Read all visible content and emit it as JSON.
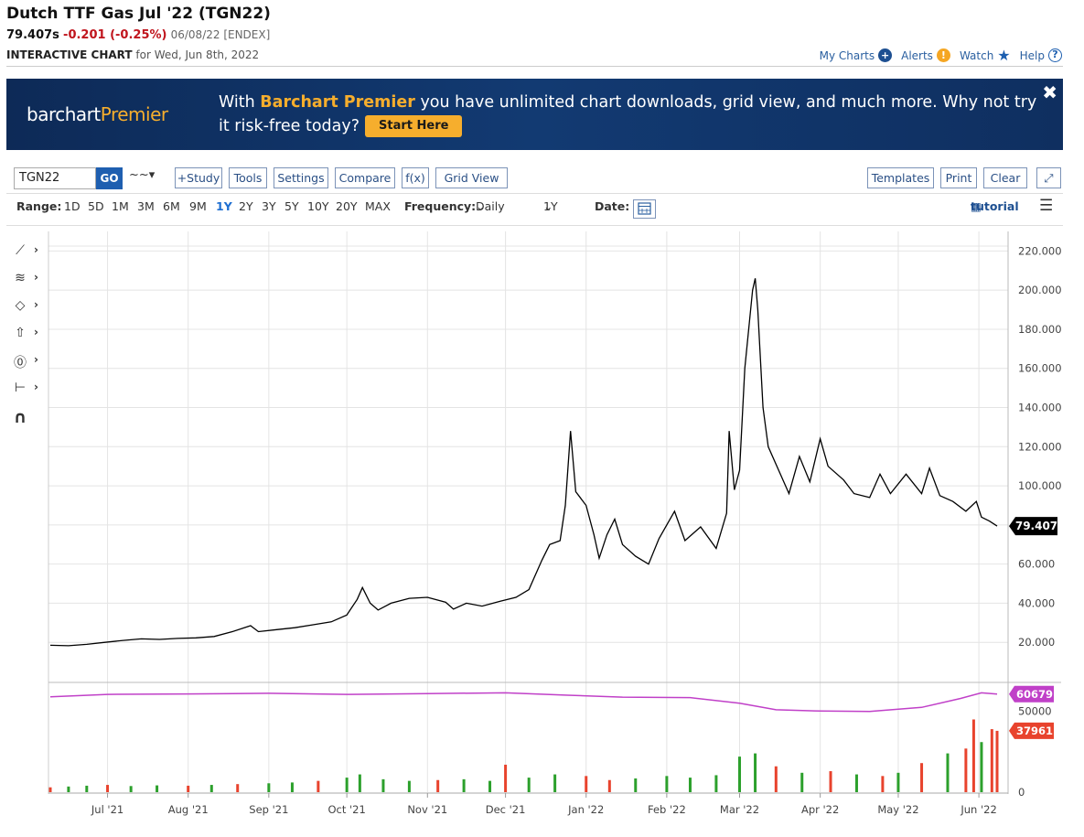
{
  "header": {
    "title": "Dutch TTF Gas Jul '22 (TGN22)",
    "last": "79.407s",
    "change": "-0.201 (-0.25%)",
    "date_exchange": "06/08/22 [ENDEX]",
    "chart_label": "INTERACTIVE CHART",
    "chart_for": "for Wed, Jun 8th, 2022"
  },
  "top_links": {
    "my_charts": "My Charts",
    "alerts": "Alerts",
    "watch": "Watch",
    "help": "Help"
  },
  "banner": {
    "logo_a": "barchart",
    "logo_b": "Premier",
    "msg_a": "With ",
    "msg_hl": "Barchart Premier",
    "msg_b": " you have unlimited chart downloads, grid view, and much more. Why not try it risk-free today?",
    "start": "Start Here",
    "close": "✖"
  },
  "toolbar": {
    "symbol": "TGN22",
    "go": "GO",
    "chart_type": "~~▾",
    "study": "+Study",
    "tools": "Tools",
    "settings": "Settings",
    "compare": "Compare",
    "fx": "f(x)",
    "grid_view": "Grid View",
    "templates": "Templates",
    "print": "Print",
    "clear": "Clear",
    "expand": "⤢"
  },
  "rangebar": {
    "range_label": "Range:",
    "ranges": [
      "1D",
      "5D",
      "1M",
      "3M",
      "6M",
      "9M",
      "1Y",
      "2Y",
      "3Y",
      "5Y",
      "10Y",
      "20Y",
      "MAX"
    ],
    "selected": "1Y",
    "frequency_label": "Frequency:",
    "frequency": "Daily",
    "period": "1Y",
    "date_label": "Date:",
    "tutorial": "tutorial"
  },
  "left_tools": [
    {
      "icon": "trendline-icon",
      "glyph": "⟋"
    },
    {
      "icon": "fibonacci-icon",
      "glyph": "≋"
    },
    {
      "icon": "shape-icon",
      "glyph": "◇"
    },
    {
      "icon": "arrow-up-icon",
      "glyph": "⇧"
    },
    {
      "icon": "text-icon",
      "glyph": "⓪"
    },
    {
      "icon": "measure-icon",
      "glyph": "⊢"
    },
    {
      "icon": "magnet-icon",
      "glyph": "∩"
    }
  ],
  "chart_data": {
    "type": "line",
    "title": "",
    "xlabel": "",
    "ylabel": "",
    "ylim": [
      0,
      230
    ],
    "y_ticks": [
      20,
      40,
      60,
      80,
      100,
      120,
      140,
      160,
      180,
      200,
      220
    ],
    "y_tick_labels": [
      "20.000",
      "40.000",
      "60.000",
      "80.000",
      "100.000",
      "120.000",
      "140.000",
      "160.000",
      "180.000",
      "200.000",
      "220.000"
    ],
    "x_start": "2021-06-09",
    "x_end": "2022-06-08",
    "x_ticks": [
      {
        "date": "2021-07-01",
        "label": "Jul '21"
      },
      {
        "date": "2021-08-01",
        "label": "Aug '21"
      },
      {
        "date": "2021-09-01",
        "label": "Sep '21"
      },
      {
        "date": "2021-10-01",
        "label": "Oct '21"
      },
      {
        "date": "2021-11-01",
        "label": "Nov '21"
      },
      {
        "date": "2021-12-01",
        "label": "Dec '21"
      },
      {
        "date": "2022-01-01",
        "label": "Jan '22"
      },
      {
        "date": "2022-02-01",
        "label": "Feb '22"
      },
      {
        "date": "2022-03-01",
        "label": "Mar '22"
      },
      {
        "date": "2022-04-01",
        "label": "Apr '22"
      },
      {
        "date": "2022-05-01",
        "label": "May '22"
      },
      {
        "date": "2022-06-01",
        "label": "Jun '22"
      }
    ],
    "price_series": {
      "color": "#000000",
      "points": [
        [
          "2021-06-09",
          18.5
        ],
        [
          "2021-06-16",
          18.3
        ],
        [
          "2021-06-23",
          19.0
        ],
        [
          "2021-06-30",
          20.0
        ],
        [
          "2021-07-07",
          21.0
        ],
        [
          "2021-07-14",
          21.8
        ],
        [
          "2021-07-21",
          21.5
        ],
        [
          "2021-07-28",
          22.0
        ],
        [
          "2021-08-04",
          22.3
        ],
        [
          "2021-08-11",
          23.0
        ],
        [
          "2021-08-18",
          25.5
        ],
        [
          "2021-08-25",
          28.5
        ],
        [
          "2021-08-28",
          25.5
        ],
        [
          "2021-09-04",
          26.5
        ],
        [
          "2021-09-11",
          27.5
        ],
        [
          "2021-09-18",
          29.0
        ],
        [
          "2021-09-25",
          30.5
        ],
        [
          "2021-10-01",
          34.0
        ],
        [
          "2021-10-05",
          42.0
        ],
        [
          "2021-10-07",
          48.0
        ],
        [
          "2021-10-10",
          40.0
        ],
        [
          "2021-10-13",
          36.5
        ],
        [
          "2021-10-18",
          40.0
        ],
        [
          "2021-10-25",
          42.5
        ],
        [
          "2021-11-01",
          43.0
        ],
        [
          "2021-11-08",
          40.5
        ],
        [
          "2021-11-11",
          37.0
        ],
        [
          "2021-11-16",
          40.0
        ],
        [
          "2021-11-22",
          38.5
        ],
        [
          "2021-11-29",
          41.0
        ],
        [
          "2021-12-05",
          43.0
        ],
        [
          "2021-12-10",
          47.0
        ],
        [
          "2021-12-15",
          62.0
        ],
        [
          "2021-12-18",
          70.0
        ],
        [
          "2021-12-22",
          72.0
        ],
        [
          "2021-12-24",
          90.0
        ],
        [
          "2021-12-26",
          128.0
        ],
        [
          "2021-12-28",
          97.0
        ],
        [
          "2022-01-01",
          90.0
        ],
        [
          "2022-01-04",
          75.0
        ],
        [
          "2022-01-06",
          63.0
        ],
        [
          "2022-01-09",
          75.0
        ],
        [
          "2022-01-12",
          83.0
        ],
        [
          "2022-01-15",
          70.0
        ],
        [
          "2022-01-20",
          64.0
        ],
        [
          "2022-01-25",
          60.0
        ],
        [
          "2022-01-29",
          73.0
        ],
        [
          "2022-02-04",
          87.0
        ],
        [
          "2022-02-08",
          72.0
        ],
        [
          "2022-02-14",
          79.0
        ],
        [
          "2022-02-20",
          68.0
        ],
        [
          "2022-02-24",
          86.0
        ],
        [
          "2022-02-25",
          128.0
        ],
        [
          "2022-02-27",
          98.0
        ],
        [
          "2022-03-01",
          108.0
        ],
        [
          "2022-03-03",
          160.0
        ],
        [
          "2022-03-06",
          200.0
        ],
        [
          "2022-03-07",
          206.0
        ],
        [
          "2022-03-08",
          190.0
        ],
        [
          "2022-03-10",
          140.0
        ],
        [
          "2022-03-12",
          120.0
        ],
        [
          "2022-03-17",
          105.0
        ],
        [
          "2022-03-20",
          96.0
        ],
        [
          "2022-03-24",
          115.0
        ],
        [
          "2022-03-28",
          102.0
        ],
        [
          "2022-04-01",
          124.0
        ],
        [
          "2022-04-04",
          110.0
        ],
        [
          "2022-04-10",
          103.0
        ],
        [
          "2022-04-14",
          96.0
        ],
        [
          "2022-04-20",
          94.0
        ],
        [
          "2022-04-24",
          106.0
        ],
        [
          "2022-04-28",
          96.0
        ],
        [
          "2022-05-04",
          106.0
        ],
        [
          "2022-05-10",
          96.0
        ],
        [
          "2022-05-13",
          109.0
        ],
        [
          "2022-05-17",
          95.0
        ],
        [
          "2022-05-22",
          92.0
        ],
        [
          "2022-05-27",
          87.0
        ],
        [
          "2022-05-31",
          92.0
        ],
        [
          "2022-06-02",
          84.0
        ],
        [
          "2022-06-05",
          82.0
        ],
        [
          "2022-06-08",
          79.407
        ]
      ]
    },
    "last_price_label": "79.407",
    "volume_panel": {
      "ylim": [
        0,
        60000
      ],
      "y_ticks": [
        0,
        50000
      ],
      "y_tick_labels": [
        "0",
        "50000"
      ],
      "open_interest": {
        "color": "#c040c8",
        "last_label": "60679",
        "points": [
          [
            "2021-06-09",
            59000
          ],
          [
            "2021-07-01",
            60500
          ],
          [
            "2021-08-01",
            60800
          ],
          [
            "2021-09-01",
            61200
          ],
          [
            "2021-10-01",
            60500
          ],
          [
            "2021-11-01",
            61000
          ],
          [
            "2021-12-01",
            61500
          ],
          [
            "2021-12-25",
            60000
          ],
          [
            "2022-01-15",
            58800
          ],
          [
            "2022-02-10",
            58500
          ],
          [
            "2022-03-01",
            55000
          ],
          [
            "2022-03-15",
            51000
          ],
          [
            "2022-04-01",
            50200
          ],
          [
            "2022-04-20",
            50000
          ],
          [
            "2022-05-10",
            52500
          ],
          [
            "2022-05-25",
            58000
          ],
          [
            "2022-06-02",
            61500
          ],
          [
            "2022-06-08",
            60679
          ]
        ]
      },
      "volume": {
        "up_color": "#2ca02c",
        "down_color": "#e8432d",
        "last_label": "37961",
        "bars": [
          [
            "2021-06-09",
            3000,
            "down"
          ],
          [
            "2021-06-16",
            3500,
            "up"
          ],
          [
            "2021-06-23",
            4000,
            "up"
          ],
          [
            "2021-07-01",
            4500,
            "down"
          ],
          [
            "2021-07-10",
            3800,
            "up"
          ],
          [
            "2021-07-20",
            4200,
            "up"
          ],
          [
            "2021-08-01",
            4000,
            "down"
          ],
          [
            "2021-08-10",
            4500,
            "up"
          ],
          [
            "2021-08-20",
            5000,
            "down"
          ],
          [
            "2021-09-01",
            5500,
            "up"
          ],
          [
            "2021-09-10",
            6000,
            "up"
          ],
          [
            "2021-09-20",
            7000,
            "down"
          ],
          [
            "2021-10-01",
            9000,
            "up"
          ],
          [
            "2021-10-06",
            11000,
            "up"
          ],
          [
            "2021-10-15",
            8000,
            "up"
          ],
          [
            "2021-10-25",
            7000,
            "up"
          ],
          [
            "2021-11-05",
            7500,
            "down"
          ],
          [
            "2021-11-15",
            8000,
            "up"
          ],
          [
            "2021-11-25",
            7000,
            "up"
          ],
          [
            "2021-12-01",
            17000,
            "down"
          ],
          [
            "2021-12-10",
            9000,
            "up"
          ],
          [
            "2021-12-20",
            11000,
            "up"
          ],
          [
            "2022-01-01",
            10000,
            "down"
          ],
          [
            "2022-01-10",
            7500,
            "down"
          ],
          [
            "2022-01-20",
            8500,
            "up"
          ],
          [
            "2022-02-01",
            10000,
            "up"
          ],
          [
            "2022-02-10",
            9000,
            "up"
          ],
          [
            "2022-02-20",
            10500,
            "up"
          ],
          [
            "2022-03-01",
            22000,
            "up"
          ],
          [
            "2022-03-07",
            24000,
            "up"
          ],
          [
            "2022-03-15",
            16000,
            "down"
          ],
          [
            "2022-03-25",
            12000,
            "up"
          ],
          [
            "2022-04-05",
            13000,
            "down"
          ],
          [
            "2022-04-15",
            11000,
            "up"
          ],
          [
            "2022-04-25",
            10000,
            "down"
          ],
          [
            "2022-05-01",
            12000,
            "up"
          ],
          [
            "2022-05-10",
            18000,
            "down"
          ],
          [
            "2022-05-20",
            24000,
            "up"
          ],
          [
            "2022-05-27",
            27000,
            "down"
          ],
          [
            "2022-05-30",
            45000,
            "down"
          ],
          [
            "2022-06-02",
            31000,
            "up"
          ],
          [
            "2022-06-06",
            39000,
            "down"
          ],
          [
            "2022-06-08",
            37961,
            "down"
          ]
        ]
      }
    }
  }
}
